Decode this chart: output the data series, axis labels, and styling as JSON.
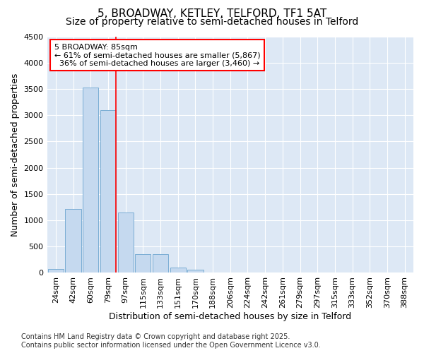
{
  "title": "5, BROADWAY, KETLEY, TELFORD, TF1 5AT",
  "subtitle": "Size of property relative to semi-detached houses in Telford",
  "xlabel": "Distribution of semi-detached houses by size in Telford",
  "ylabel": "Number of semi-detached properties",
  "categories": [
    "24sqm",
    "42sqm",
    "60sqm",
    "79sqm",
    "97sqm",
    "115sqm",
    "133sqm",
    "151sqm",
    "170sqm",
    "188sqm",
    "206sqm",
    "224sqm",
    "242sqm",
    "261sqm",
    "279sqm",
    "297sqm",
    "315sqm",
    "333sqm",
    "352sqm",
    "370sqm",
    "388sqm"
  ],
  "values": [
    80,
    1220,
    3520,
    3100,
    1150,
    350,
    350,
    100,
    60,
    0,
    0,
    0,
    0,
    0,
    0,
    0,
    0,
    0,
    0,
    0,
    0
  ],
  "bar_color": "#c5d9ef",
  "bar_edge_color": "#7aadd4",
  "vline_x_index": 3,
  "vline_color": "red",
  "annotation_text": "5 BROADWAY: 85sqm\n← 61% of semi-detached houses are smaller (5,867)\n  36% of semi-detached houses are larger (3,460) →",
  "annotation_box_color": "white",
  "annotation_box_edge_color": "red",
  "ylim": [
    0,
    4500
  ],
  "yticks": [
    0,
    500,
    1000,
    1500,
    2000,
    2500,
    3000,
    3500,
    4000,
    4500
  ],
  "footnote": "Contains HM Land Registry data © Crown copyright and database right 2025.\nContains public sector information licensed under the Open Government Licence v3.0.",
  "fig_bg_color": "#ffffff",
  "plot_bg_color": "#dde8f5",
  "title_fontsize": 11,
  "subtitle_fontsize": 10,
  "axis_label_fontsize": 9,
  "tick_fontsize": 8,
  "footnote_fontsize": 7,
  "annotation_fontsize": 8
}
